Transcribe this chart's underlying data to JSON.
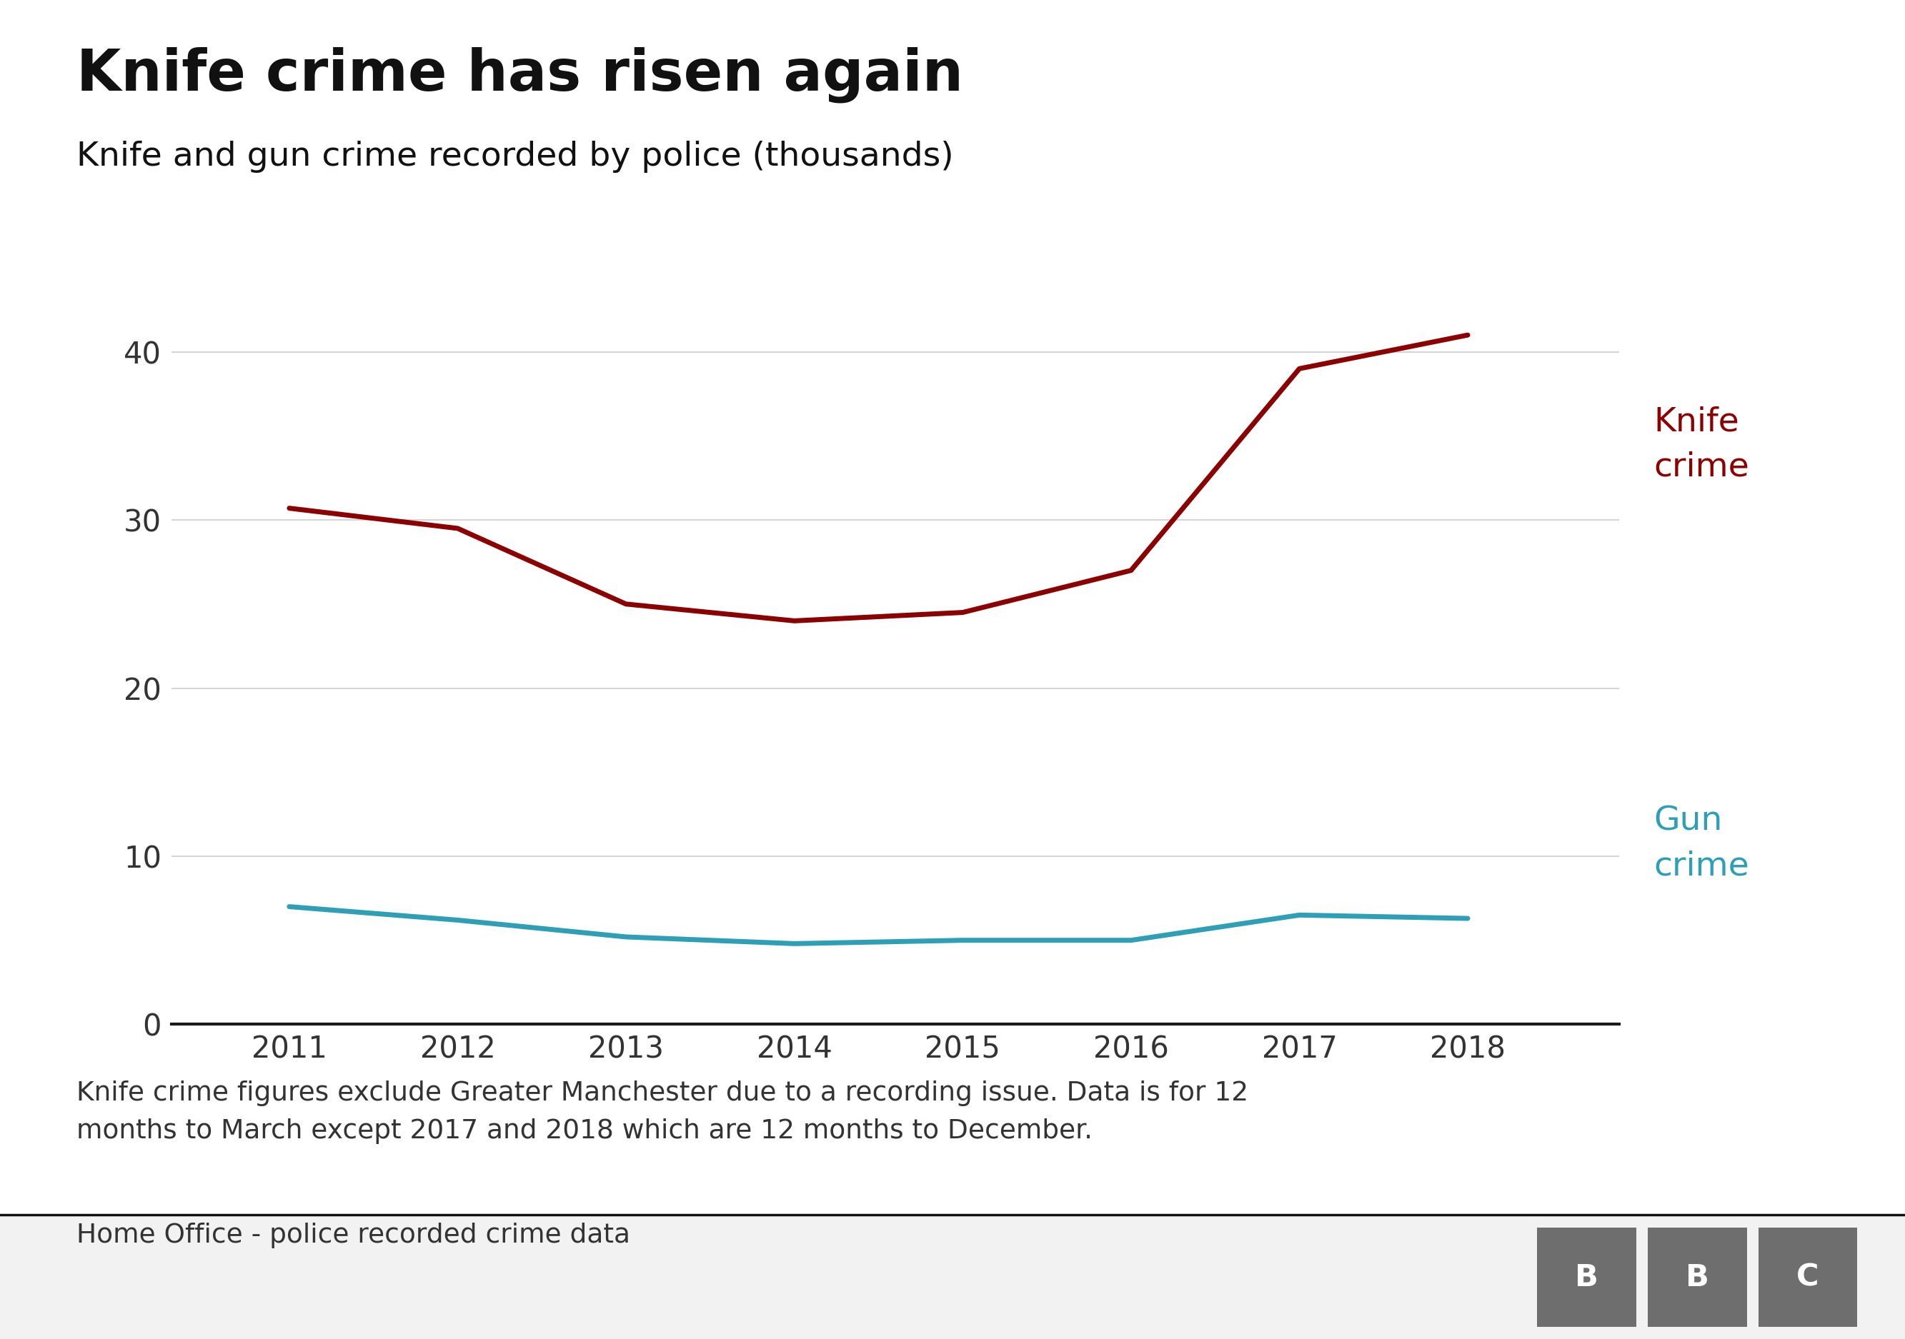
{
  "title": "Knife crime has risen again",
  "subtitle": "Knife and gun crime recorded by police (thousands)",
  "years": [
    2011,
    2012,
    2013,
    2014,
    2015,
    2016,
    2017,
    2018
  ],
  "knife_crime": [
    30.7,
    29.5,
    25.0,
    24.0,
    24.5,
    27.0,
    39.0,
    41.0
  ],
  "gun_crime": [
    7.0,
    6.2,
    5.2,
    4.8,
    5.0,
    5.0,
    6.5,
    6.3
  ],
  "knife_color": "#8B0000",
  "gun_color": "#2E9FB5",
  "background_color": "#ffffff",
  "grid_color": "#cccccc",
  "axis_line_color": "#1a1a1a",
  "ylim": [
    0,
    45
  ],
  "yticks": [
    0,
    10,
    20,
    30,
    40
  ],
  "footnote": "Knife crime figures exclude Greater Manchester due to a recording issue. Data is for 12\nmonths to March except 2017 and 2018 which are 12 months to December.",
  "source_text": "Home Office - police recorded crime data",
  "title_fontsize": 58,
  "subtitle_fontsize": 34,
  "tick_fontsize": 30,
  "label_fontsize": 34,
  "footnote_fontsize": 27,
  "source_fontsize": 27,
  "line_width": 5.0,
  "bbc_color": "#6e6e6e"
}
